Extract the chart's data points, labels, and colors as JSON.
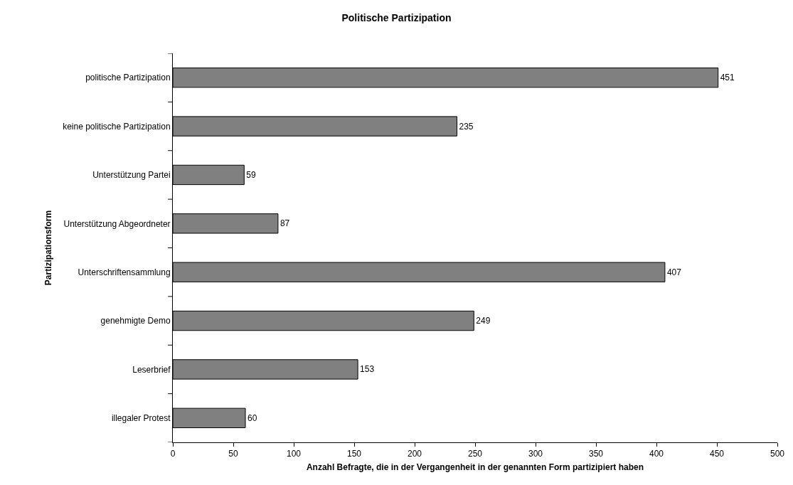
{
  "chart_data": {
    "type": "bar",
    "orientation": "horizontal",
    "title": "Politische Partizipation",
    "xlabel": "Anzahl Befragte, die in der Vergangenheit in der genannten Form partizipiert haben",
    "ylabel": "Partizipationsform",
    "categories": [
      "politische Partizipation",
      "keine politische Partizipation",
      "Unterstützung Partei",
      "Unterstützung Abgeordneter",
      "Unterschriftensammlung",
      "genehmigte Demo",
      "Leserbrief",
      "illegaler Protest"
    ],
    "values": [
      451,
      235,
      59,
      87,
      407,
      249,
      153,
      60
    ],
    "color": "#808080",
    "xlim": [
      0,
      500
    ],
    "xticks": [
      0,
      50,
      100,
      150,
      200,
      250,
      300,
      350,
      400,
      450,
      500
    ],
    "data_labels": true
  }
}
